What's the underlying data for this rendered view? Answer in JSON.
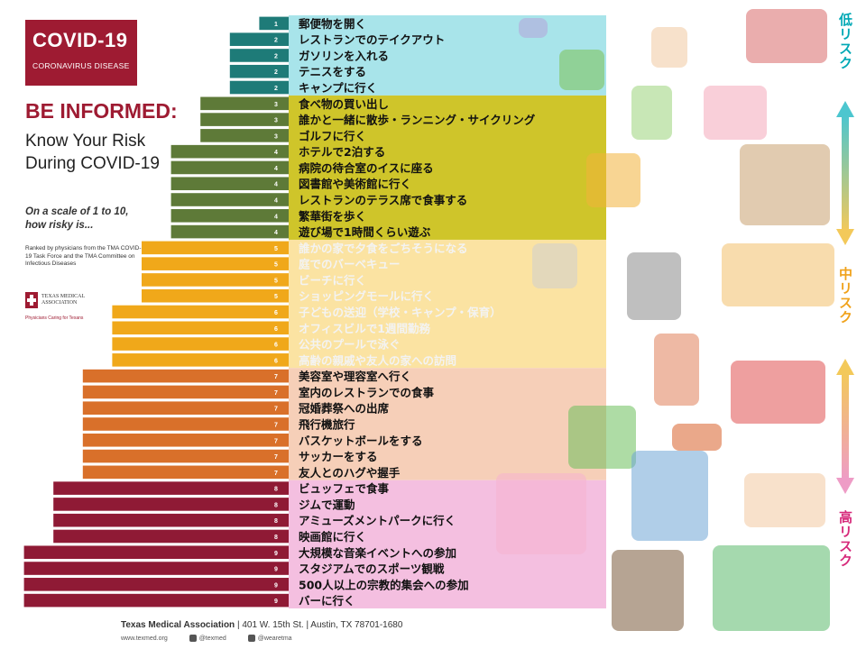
{
  "header": {
    "badge_title": "COVID-19",
    "badge_sub": "CORONAVIRUS DISEASE",
    "headline": "BE INFORMED:",
    "subhead": "Know Your Risk During COVID-19",
    "scale_note": "On a scale of 1 to 10, how risky is...",
    "ranked_note": "Ranked by physicians from the TMA COVID-19 Task Force and the TMA Committee on Infectious Diseases",
    "logo_name": "TEXAS MEDICAL ASSOCIATION",
    "logo_tagline": "Physicians Caring for Texans"
  },
  "footer": {
    "org": "Texas Medical Association",
    "address": "| 401 W. 15th St. | Austin, TX 78701-1680",
    "website": "www.texmed.org",
    "social1": "@texmed",
    "social2": "@wearetma"
  },
  "risk_scale": {
    "low_label": "低リスク",
    "mid_label": "中リスク",
    "high_label": "高リスク",
    "colors": {
      "low": "#00a8b5",
      "mid": "#f0a21b",
      "high": "#d6297a"
    }
  },
  "colors": {
    "level_2": "#1e7b78",
    "level_3": "#5e7a38",
    "level_4": "#5e7a38",
    "level_5": "#f0a81a",
    "level_6": "#f0a81a",
    "level_7": "#d9702a",
    "level_8": "#8f1a35",
    "level_9": "#8f1a35",
    "band_low": "#a8e4ea",
    "band_lowmid": "#cfc52a",
    "band_mid": "#fbe3a2",
    "band_midhigh": "#f6cfb8",
    "band_high": "#f4bfe0",
    "label_on_yellow": "#f3f3f3"
  },
  "chart_data": {
    "type": "bar",
    "orientation": "horizontal",
    "xlim": [
      0,
      9
    ],
    "categories": [
      "郵便物を開く",
      "レストランでのテイクアウト",
      "ガソリンを入れる",
      "テニスをする",
      "キャンプに行く",
      "食べ物の買い出し",
      "誰かと一緒に散歩・ランニング・サイクリング",
      "ゴルフに行く",
      "ホテルで2泊する",
      "病院の待合室のイスに座る",
      "図書館や美術館に行く",
      "レストランのテラス席で食事する",
      "繁華街を歩く",
      "遊び場で1時間くらい遊ぶ",
      "誰かの家で夕食をごちそうになる",
      "庭でのバーベキュー",
      "ビーチに行く",
      "ショッピングモールに行く",
      "子どもの送迎（学校・キャンプ・保育）",
      "オフィスビルで1週間勤務",
      "公共のプールで泳ぐ",
      "高齢の親戚や友人の家への訪問",
      "美容室や理容室へ行く",
      "室内のレストランでの食事",
      "冠婚葬祭への出席",
      "飛行機旅行",
      "バスケットボールをする",
      "サッカーをする",
      "友人とのハグや握手",
      "ビュッフェで食事",
      "ジムで運動",
      "アミューズメントパークに行く",
      "映画館に行く",
      "大規模な音楽イベントへの参加",
      "スタジアムでのスポーツ観戦",
      "500人以上の宗教的集会への参加",
      "バーに行く"
    ],
    "values": [
      1,
      2,
      2,
      2,
      2,
      3,
      3,
      3,
      4,
      4,
      4,
      4,
      4,
      4,
      5,
      5,
      5,
      5,
      6,
      6,
      6,
      6,
      7,
      7,
      7,
      7,
      7,
      7,
      7,
      8,
      8,
      8,
      8,
      9,
      9,
      9,
      9
    ]
  }
}
